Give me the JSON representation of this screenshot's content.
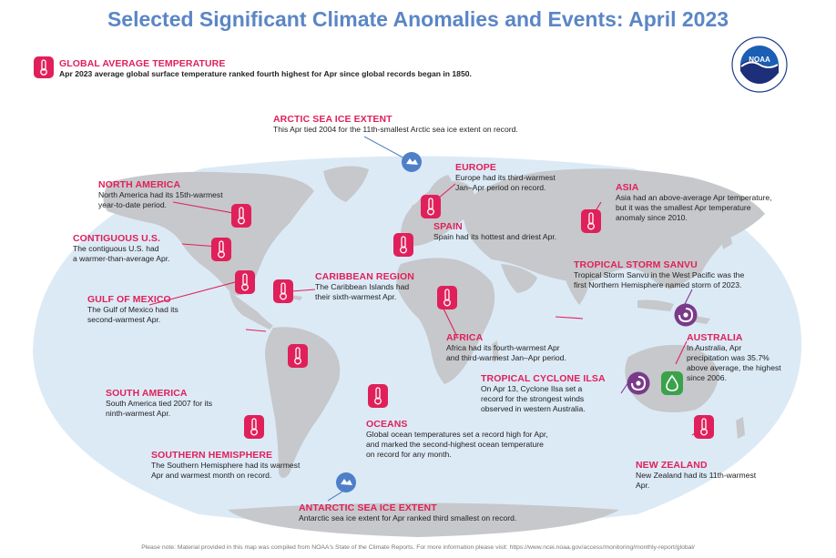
{
  "title": "Selected Significant Climate Anomalies and Events: April 2023",
  "logo_text": "NOAA",
  "footer_note": "Please note: Material provided in this map was compiled from NOAA's State of the Climate Reports. For more information please visit: https://www.ncei.noaa.gov/access/monitoring/monthly-report/global/",
  "colors": {
    "title": "#5b86c5",
    "heading": "#e0205a",
    "ocean": "#dceaf6",
    "land": "#c6c8cb",
    "thermometer": "#e0205a"
  },
  "global": {
    "heading": "GLOBAL AVERAGE TEMPERATURE",
    "text": "Apr 2023 average global surface temperature ranked fourth highest for Apr since global records began in 1850."
  },
  "events": {
    "arctic": {
      "heading": "ARCTIC SEA ICE EXTENT",
      "lines": [
        "This Apr tied 2004 for the 11th-smallest Arctic sea ice extent on record."
      ],
      "icon": "sea-ice-icon"
    },
    "europe": {
      "heading": "EUROPE",
      "lines": [
        "Europe had its third-warmest",
        "Jan–Apr period on record."
      ],
      "icon": "thermometer-icon"
    },
    "asia": {
      "heading": "ASIA",
      "lines": [
        "Asia had an above-average Apr temperature,",
        "but it was the smallest Apr temperature",
        "anomaly since 2010."
      ],
      "icon": "thermometer-icon"
    },
    "north_america": {
      "heading": "NORTH AMERICA",
      "lines": [
        "North America had its 15th-warmest",
        "year-to-date period."
      ],
      "icon": "thermometer-icon"
    },
    "contiguous_us": {
      "heading": "CONTIGUOUS U.S.",
      "lines": [
        "The contiguous U.S. had",
        "a warmer-than-average Apr."
      ],
      "icon": "thermometer-icon"
    },
    "spain": {
      "heading": "SPAIN",
      "lines": [
        "Spain had its hottest and driest Apr."
      ],
      "icon": "thermometer-icon"
    },
    "caribbean": {
      "heading": "CARIBBEAN REGION",
      "lines": [
        "The Caribbean Islands had",
        "their sixth-warmest Apr."
      ],
      "icon": "thermometer-icon"
    },
    "gulf_of_mexico": {
      "heading": "GULF OF MEXICO",
      "lines": [
        "The Gulf of Mexico had its",
        "second-warmest Apr."
      ],
      "icon": "thermometer-icon"
    },
    "sanvu": {
      "heading": "TROPICAL STORM SANVU",
      "lines": [
        "Tropical Storm Sanvu in the West Pacific was the",
        "first Northern Hemisphere named storm of 2023."
      ],
      "icon": "tropical-storm-icon"
    },
    "africa": {
      "heading": "AFRICA",
      "lines": [
        "Africa had its fourth-warmest Apr",
        "and third-warmest Jan–Apr period."
      ],
      "icon": "thermometer-icon"
    },
    "australia": {
      "heading": "AUSTRALIA",
      "lines": [
        "In Australia, Apr",
        "precipitation was 35.7%",
        "above average, the highest",
        "since 2006."
      ],
      "icon": "precipitation-icon"
    },
    "south_america": {
      "heading": "SOUTH AMERICA",
      "lines": [
        "South America tied 2007 for its",
        "ninth-warmest Apr."
      ],
      "icon": "thermometer-icon"
    },
    "ilsa": {
      "heading": "TROPICAL CYCLONE ILSA",
      "lines": [
        "On Apr 13, Cyclone Ilsa set a",
        "record for the strongest winds",
        "observed in western Australia."
      ],
      "icon": "tropical-cyclone-icon"
    },
    "oceans": {
      "heading": "OCEANS",
      "lines": [
        "Global ocean temperatures set a record high for Apr,",
        "and marked the second-highest ocean temperature",
        "on record for any month."
      ],
      "icon": "thermometer-icon"
    },
    "southern_hemisphere": {
      "heading": "SOUTHERN HEMISPHERE",
      "lines": [
        "The Southern Hemisphere had its warmest",
        "Apr and warmest month on record."
      ],
      "icon": "thermometer-icon"
    },
    "new_zealand": {
      "heading": "NEW ZEALAND",
      "lines": [
        "New Zealand had its 11th-warmest",
        "Apr."
      ],
      "icon": "thermometer-icon"
    },
    "antarctic": {
      "heading": "ANTARCTIC SEA ICE EXTENT",
      "lines": [
        "Antarctic sea ice extent for Apr ranked third smallest on record."
      ],
      "icon": "sea-ice-icon"
    }
  }
}
